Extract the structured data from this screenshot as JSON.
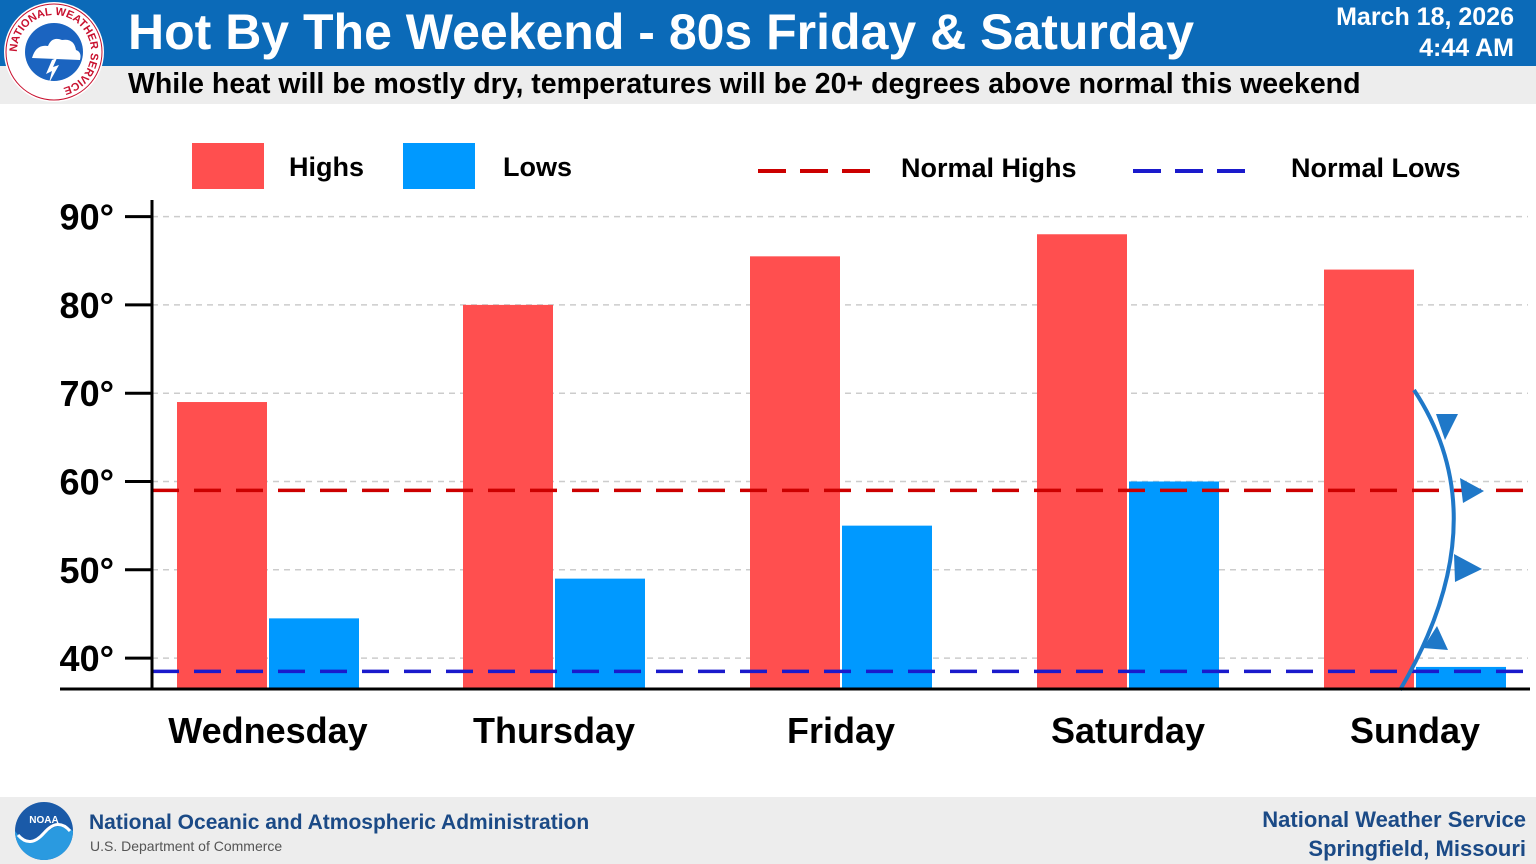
{
  "header": {
    "title": "Hot By The Weekend - 80s Friday & Saturday",
    "subtitle": "While heat will be mostly dry, temperatures will be 20+ degrees above normal this weekend",
    "date": "March 18, 2026",
    "time": "4:44 AM",
    "logo_text": "NATIONAL WEATHER SERVICE"
  },
  "footer": {
    "agency": "National Oceanic and Atmospheric Administration",
    "department": "U.S. Department of Commerce",
    "office_line1": "National Weather Service",
    "office_line2": "Springfield, Missouri",
    "logo_text": "NOAA"
  },
  "colors": {
    "header_blue": "#0b6ab8",
    "highs": "#ff4f4f",
    "lows": "#0099ff",
    "normal_highs": "#cc0000",
    "normal_lows": "#1a1acc",
    "front": "#1f78c8",
    "footer_text": "#1b4a86"
  },
  "chart_data": {
    "type": "bar",
    "categories": [
      "Wednesday",
      "Thursday",
      "Friday",
      "Saturday",
      "Sunday"
    ],
    "series": [
      {
        "name": "Highs",
        "values": [
          69,
          80,
          85.5,
          88,
          84
        ]
      },
      {
        "name": "Lows",
        "values": [
          44.5,
          49,
          55,
          60,
          39
        ]
      }
    ],
    "reference_lines": [
      {
        "name": "Normal Highs",
        "value": 59,
        "style": "dashed"
      },
      {
        "name": "Normal Lows",
        "value": 38.5,
        "style": "dashed"
      }
    ],
    "yticks": [
      40,
      50,
      60,
      70,
      80,
      90
    ],
    "ytick_labels": [
      "40°",
      "50°",
      "60°",
      "70°",
      "80°",
      "90°"
    ],
    "ylim": [
      36.5,
      91
    ],
    "grid": true,
    "legend": "top",
    "annotation": "cold-front-icon"
  }
}
